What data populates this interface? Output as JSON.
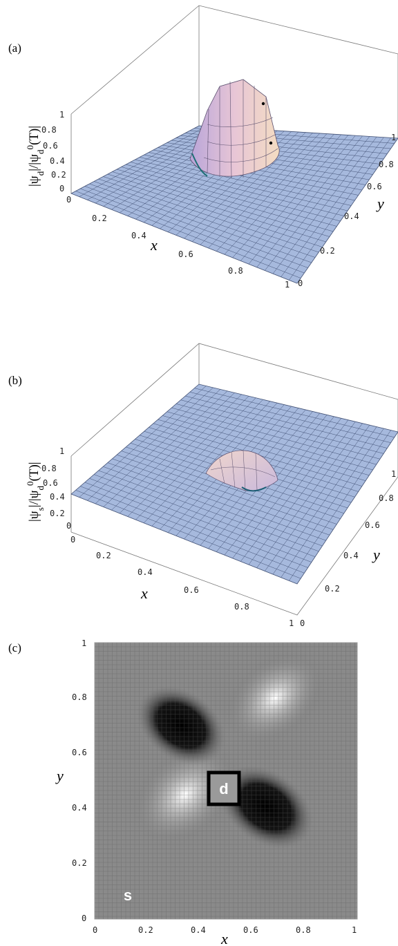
{
  "panels": [
    {
      "label": "(a)",
      "zlabel": "|ψ_d|/|ψ_d^0(T)|",
      "xlabel": "x",
      "ylabel": "y",
      "x_ticks": [
        "0.2",
        "0.4",
        "0.6",
        "0.8",
        "1"
      ],
      "y_ticks": [
        "0",
        "0.2",
        "0.4",
        "0.6",
        "0.8",
        "1"
      ],
      "z_ticks": [
        "0",
        "0.2",
        "0.4",
        "0.6",
        "0.8",
        "1"
      ],
      "x_zero": "0"
    },
    {
      "label": "(b)",
      "zlabel": "|ψ_s|/|ψ_d^0(T)|",
      "xlabel": "x",
      "ylabel": "y",
      "x_ticks": [
        "0.2",
        "0.4",
        "0.6",
        "0.8",
        "1"
      ],
      "y_ticks": [
        "0",
        "0.2",
        "0.4",
        "0.6",
        "0.8",
        "1"
      ],
      "z_ticks": [
        "0",
        "0.2",
        "0.4",
        "0.6",
        "0.8",
        "1"
      ],
      "x_zero": "0"
    },
    {
      "label": "(c)",
      "xlabel": "x",
      "ylabel": "y",
      "x_ticks": [
        "0",
        "0.2",
        "0.4",
        "0.6",
        "0.8",
        "1"
      ],
      "y_ticks": [
        "0",
        "0.2",
        "0.4",
        "0.6",
        "0.8",
        "1"
      ],
      "region_d": "d",
      "region_s": "s"
    }
  ],
  "chart_data": [
    {
      "type": "surface",
      "panel": "(a)",
      "zlabel": "|ψd|/|ψd0(T)|",
      "xlabel": "x",
      "ylabel": "y",
      "xlim": [
        0,
        1
      ],
      "ylim": [
        0,
        1
      ],
      "zlim": [
        0,
        1
      ],
      "description_values": {
        "background_level": 0.0,
        "peak_level": 1.0,
        "peak_region_x": [
          0.45,
          0.55
        ],
        "peak_region_y": [
          0.45,
          0.55
        ]
      }
    },
    {
      "type": "surface",
      "panel": "(b)",
      "zlabel": "|ψs|/|ψd0(T)|",
      "xlabel": "x",
      "ylabel": "y",
      "xlim": [
        0,
        1
      ],
      "ylim": [
        0,
        1
      ],
      "zlim": [
        0,
        1
      ],
      "description_values": {
        "background_level": 0.45,
        "dip_level": 0.2,
        "dip_region_x": [
          0.4,
          0.6
        ],
        "dip_region_y": [
          0.4,
          0.6
        ]
      }
    },
    {
      "type": "heatmap",
      "panel": "(c)",
      "xlabel": "x",
      "ylabel": "y",
      "xlim": [
        0,
        1
      ],
      "ylim": [
        0,
        1
      ],
      "colormap": "grayscale",
      "regions": [
        "d",
        "s"
      ]
    }
  ]
}
